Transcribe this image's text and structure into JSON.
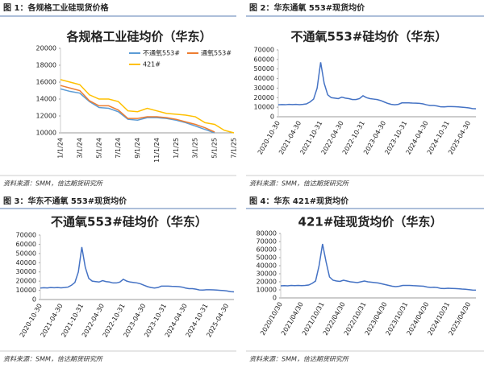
{
  "figures": [
    {
      "caption": "图 1：各规格工业硅现货价格",
      "source": "资料来源：SMM，信达期货研究所"
    },
    {
      "caption": "图 2：华东通氧 553#现货均价",
      "source": "资料来源：SMM，信达期货研究所"
    },
    {
      "caption": "图 3：华东不通氧 553#现货均价",
      "source": "资料来源：SMM，信达期货研究所"
    },
    {
      "caption": "图 4：华东 421#现货均价",
      "source": "资料来源：SMM，信达期货研究所"
    }
  ],
  "chart_data": [
    {
      "type": "line",
      "title": "各规格工业硅均价（华东）",
      "categories": [
        "1/1/24",
        null,
        "3/1/24",
        null,
        "5/1/24",
        null,
        "7/1/24",
        null,
        "9/1/24",
        null,
        "11/1/24",
        null,
        "1/1/25",
        null,
        "3/1/25",
        null,
        "5/1/25",
        null,
        "7/1/25"
      ],
      "series": [
        {
          "name": "不通氧553#",
          "color": "#5b9bd5",
          "values": [
            15200,
            14900,
            14700,
            13700,
            13000,
            12900,
            12500,
            11600,
            11500,
            11800,
            11800,
            11700,
            11500,
            11200,
            10800,
            10400,
            10000,
            null,
            null
          ]
        },
        {
          "name": "通氧553#",
          "color": "#ed7d31",
          "values": [
            15600,
            15300,
            15000,
            13800,
            13200,
            13200,
            12700,
            11700,
            11700,
            11900,
            11900,
            11800,
            11600,
            11300,
            11000,
            10600,
            10100,
            null,
            null
          ]
        },
        {
          "name": "421#",
          "color": "#ffc000",
          "values": [
            16300,
            16000,
            15700,
            14500,
            14000,
            14000,
            13700,
            12600,
            12500,
            12900,
            12600,
            12300,
            12200,
            12100,
            11900,
            11200,
            11000,
            10300,
            10000
          ]
        }
      ],
      "ylim": [
        10000,
        20000
      ],
      "yticks": [
        10000,
        12000,
        14000,
        16000,
        18000,
        20000
      ],
      "legend": "upper right"
    },
    {
      "type": "line",
      "title": "不通氧553#硅均价（华东）",
      "color": "#4472c4",
      "categories": [
        "2020-10-30",
        null,
        null,
        null,
        null,
        null,
        "2021-04-30",
        null,
        null,
        null,
        null,
        null,
        "2021-10-31",
        null,
        null,
        null,
        null,
        null,
        "2022-04-30",
        null,
        null,
        null,
        null,
        null,
        "2022-10-31",
        null,
        null,
        null,
        null,
        null,
        "2023-04-30",
        null,
        null,
        null,
        null,
        null,
        "2023-10-31",
        null,
        null,
        null,
        null,
        null,
        "2024-04-30",
        null,
        null,
        null,
        null,
        null,
        "2024-10-31",
        null,
        null,
        null,
        null,
        null,
        "2025-04-30",
        null,
        null
      ],
      "values": [
        12500,
        12800,
        12600,
        13000,
        12800,
        13000,
        12700,
        13000,
        13500,
        15500,
        18500,
        30000,
        57000,
        35000,
        23000,
        20000,
        19500,
        19000,
        20500,
        19500,
        19000,
        18000,
        18000,
        19000,
        22000,
        20000,
        19000,
        18500,
        18000,
        17000,
        15500,
        14000,
        13000,
        12500,
        13000,
        14500,
        14500,
        14500,
        14300,
        14200,
        14000,
        13500,
        12500,
        11800,
        11800,
        11300,
        10400,
        10300,
        10600,
        10600,
        10500,
        10300,
        10000,
        9700,
        9300,
        8500,
        8300
      ],
      "ylim": [
        0,
        70000
      ],
      "yticks": [
        0,
        10000,
        20000,
        30000,
        40000,
        50000,
        60000,
        70000
      ]
    },
    {
      "type": "line",
      "title": "不通氧553#硅均价（华东）",
      "color": "#4472c4",
      "categories": [
        "2020-10-30",
        null,
        null,
        null,
        null,
        null,
        "2021-04-30",
        null,
        null,
        null,
        null,
        null,
        "2021-10-31",
        null,
        null,
        null,
        null,
        null,
        "2022-04-30",
        null,
        null,
        null,
        null,
        null,
        "2022-10-31",
        null,
        null,
        null,
        null,
        null,
        "2023-04-30",
        null,
        null,
        null,
        null,
        null,
        "2023-10-31",
        null,
        null,
        null,
        null,
        null,
        "2024-04-30",
        null,
        null,
        null,
        null,
        null,
        "2024-10-31",
        null,
        null,
        null,
        null,
        null,
        "2025-04-30",
        null,
        null
      ],
      "values": [
        12500,
        12800,
        12600,
        13000,
        12800,
        13000,
        12700,
        13000,
        13500,
        15500,
        18500,
        30000,
        57000,
        35000,
        23000,
        20000,
        19500,
        19000,
        20500,
        19500,
        19000,
        18000,
        18000,
        19000,
        22000,
        20000,
        19000,
        18500,
        18000,
        17000,
        15500,
        14000,
        13000,
        12500,
        13000,
        14500,
        14500,
        14500,
        14300,
        14200,
        14000,
        13500,
        12500,
        11800,
        11800,
        11300,
        10400,
        10300,
        10600,
        10600,
        10500,
        10300,
        10000,
        9700,
        9300,
        8500,
        8300
      ],
      "ylim": [
        0,
        70000
      ],
      "yticks": [
        0,
        10000,
        20000,
        30000,
        40000,
        50000,
        60000,
        70000
      ]
    },
    {
      "type": "line",
      "title": "421#硅现货均价（华东）",
      "color": "#4472c4",
      "categories": [
        "2020/10/30",
        null,
        null,
        null,
        null,
        null,
        "2021/04/30",
        null,
        null,
        null,
        null,
        null,
        "2021/10/31",
        null,
        null,
        null,
        null,
        null,
        "2022/04/30",
        null,
        null,
        null,
        null,
        null,
        "2022/10/31",
        null,
        null,
        null,
        null,
        null,
        "2023/04/30",
        null,
        null,
        null,
        null,
        null,
        "2023/10/31",
        null,
        null,
        null,
        null,
        null,
        "2024/04/30",
        null,
        null,
        null,
        null,
        null,
        "2024/10/31",
        null,
        null,
        null,
        null,
        null,
        "2025/04/30",
        null,
        null
      ],
      "values": [
        15000,
        15200,
        15000,
        15500,
        15300,
        15500,
        15200,
        15500,
        16000,
        18000,
        21000,
        40000,
        67000,
        45000,
        26000,
        22000,
        21000,
        20500,
        22000,
        21000,
        20000,
        19500,
        19000,
        20000,
        21000,
        20000,
        19500,
        19000,
        18500,
        17500,
        16500,
        15500,
        14500,
        14000,
        14500,
        15500,
        15500,
        15500,
        15200,
        15000,
        14800,
        14500,
        13500,
        13000,
        13200,
        12700,
        11700,
        11600,
        12000,
        11800,
        11600,
        11400,
        11000,
        10700,
        10300,
        9800,
        9600
      ],
      "ylim": [
        0,
        80000
      ],
      "yticks": [
        0,
        10000,
        20000,
        30000,
        40000,
        50000,
        60000,
        70000,
        80000
      ]
    }
  ]
}
